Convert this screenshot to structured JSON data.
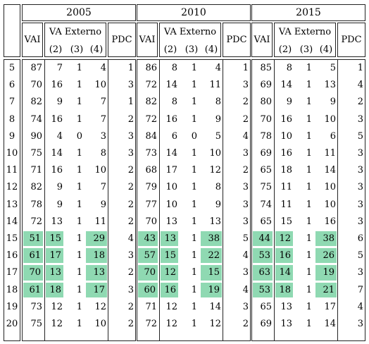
{
  "years": [
    "2005",
    "2010",
    "2015"
  ],
  "headers": {
    "vai": "VAI",
    "va_externo": "VA Externo",
    "pdc": "PDC",
    "sub": [
      "(2)",
      "(3)",
      "(4)"
    ]
  },
  "highlight_color": "#8fd9b2",
  "rows": [
    {
      "id": "5",
      "y2005": [
        "87",
        "7",
        "1",
        "4",
        "1"
      ],
      "y2010": [
        "86",
        "8",
        "1",
        "4",
        "1"
      ],
      "y2015": [
        "85",
        "8",
        "1",
        "5",
        "1"
      ]
    },
    {
      "id": "6",
      "y2005": [
        "70",
        "16",
        "1",
        "10",
        "3"
      ],
      "y2010": [
        "72",
        "14",
        "1",
        "11",
        "3"
      ],
      "y2015": [
        "69",
        "14",
        "1",
        "13",
        "4"
      ]
    },
    {
      "id": "7",
      "y2005": [
        "82",
        "9",
        "1",
        "7",
        "1"
      ],
      "y2010": [
        "82",
        "8",
        "1",
        "8",
        "2"
      ],
      "y2015": [
        "80",
        "9",
        "1",
        "9",
        "2"
      ]
    },
    {
      "id": "8",
      "y2005": [
        "74",
        "16",
        "1",
        "7",
        "2"
      ],
      "y2010": [
        "72",
        "16",
        "1",
        "9",
        "2"
      ],
      "y2015": [
        "70",
        "16",
        "1",
        "10",
        "3"
      ]
    },
    {
      "id": "9",
      "y2005": [
        "90",
        "4",
        "0",
        "3",
        "3"
      ],
      "y2010": [
        "84",
        "6",
        "0",
        "5",
        "4"
      ],
      "y2015": [
        "78",
        "10",
        "1",
        "6",
        "5"
      ]
    },
    {
      "id": "10",
      "y2005": [
        "75",
        "14",
        "1",
        "8",
        "3"
      ],
      "y2010": [
        "73",
        "14",
        "1",
        "10",
        "3"
      ],
      "y2015": [
        "69",
        "16",
        "1",
        "11",
        "3"
      ]
    },
    {
      "id": "11",
      "y2005": [
        "71",
        "16",
        "1",
        "10",
        "2"
      ],
      "y2010": [
        "68",
        "17",
        "1",
        "12",
        "2"
      ],
      "y2015": [
        "65",
        "18",
        "1",
        "14",
        "3"
      ]
    },
    {
      "id": "12",
      "y2005": [
        "82",
        "9",
        "1",
        "7",
        "2"
      ],
      "y2010": [
        "79",
        "10",
        "1",
        "8",
        "3"
      ],
      "y2015": [
        "75",
        "11",
        "1",
        "10",
        "3"
      ]
    },
    {
      "id": "13",
      "y2005": [
        "78",
        "9",
        "1",
        "9",
        "2"
      ],
      "y2010": [
        "77",
        "10",
        "1",
        "9",
        "3"
      ],
      "y2015": [
        "74",
        "11",
        "1",
        "10",
        "3"
      ]
    },
    {
      "id": "14",
      "y2005": [
        "72",
        "13",
        "1",
        "11",
        "2"
      ],
      "y2010": [
        "70",
        "13",
        "1",
        "13",
        "3"
      ],
      "y2015": [
        "65",
        "15",
        "1",
        "16",
        "3"
      ]
    },
    {
      "id": "15",
      "y2005": [
        "51",
        "15",
        "1",
        "29",
        "4"
      ],
      "y2010": [
        "43",
        "13",
        "1",
        "38",
        "5"
      ],
      "y2015": [
        "44",
        "12",
        "1",
        "38",
        "6"
      ],
      "hl": true
    },
    {
      "id": "16",
      "y2005": [
        "61",
        "17",
        "1",
        "18",
        "3"
      ],
      "y2010": [
        "57",
        "15",
        "1",
        "22",
        "4"
      ],
      "y2015": [
        "53",
        "16",
        "1",
        "26",
        "5"
      ],
      "hl": true
    },
    {
      "id": "17",
      "y2005": [
        "70",
        "13",
        "1",
        "13",
        "2"
      ],
      "y2010": [
        "70",
        "12",
        "1",
        "15",
        "3"
      ],
      "y2015": [
        "63",
        "14",
        "1",
        "19",
        "3"
      ],
      "hl": true
    },
    {
      "id": "18",
      "y2005": [
        "61",
        "18",
        "1",
        "17",
        "3"
      ],
      "y2010": [
        "60",
        "16",
        "1",
        "19",
        "4"
      ],
      "y2015": [
        "53",
        "18",
        "1",
        "21",
        "7"
      ],
      "hl": true
    },
    {
      "id": "19",
      "y2005": [
        "73",
        "12",
        "1",
        "12",
        "2"
      ],
      "y2010": [
        "71",
        "12",
        "1",
        "14",
        "3"
      ],
      "y2015": [
        "65",
        "13",
        "1",
        "17",
        "4"
      ]
    },
    {
      "id": "20",
      "y2005": [
        "75",
        "12",
        "1",
        "10",
        "2"
      ],
      "y2010": [
        "72",
        "12",
        "1",
        "12",
        "2"
      ],
      "y2015": [
        "69",
        "13",
        "1",
        "14",
        "3"
      ]
    }
  ]
}
